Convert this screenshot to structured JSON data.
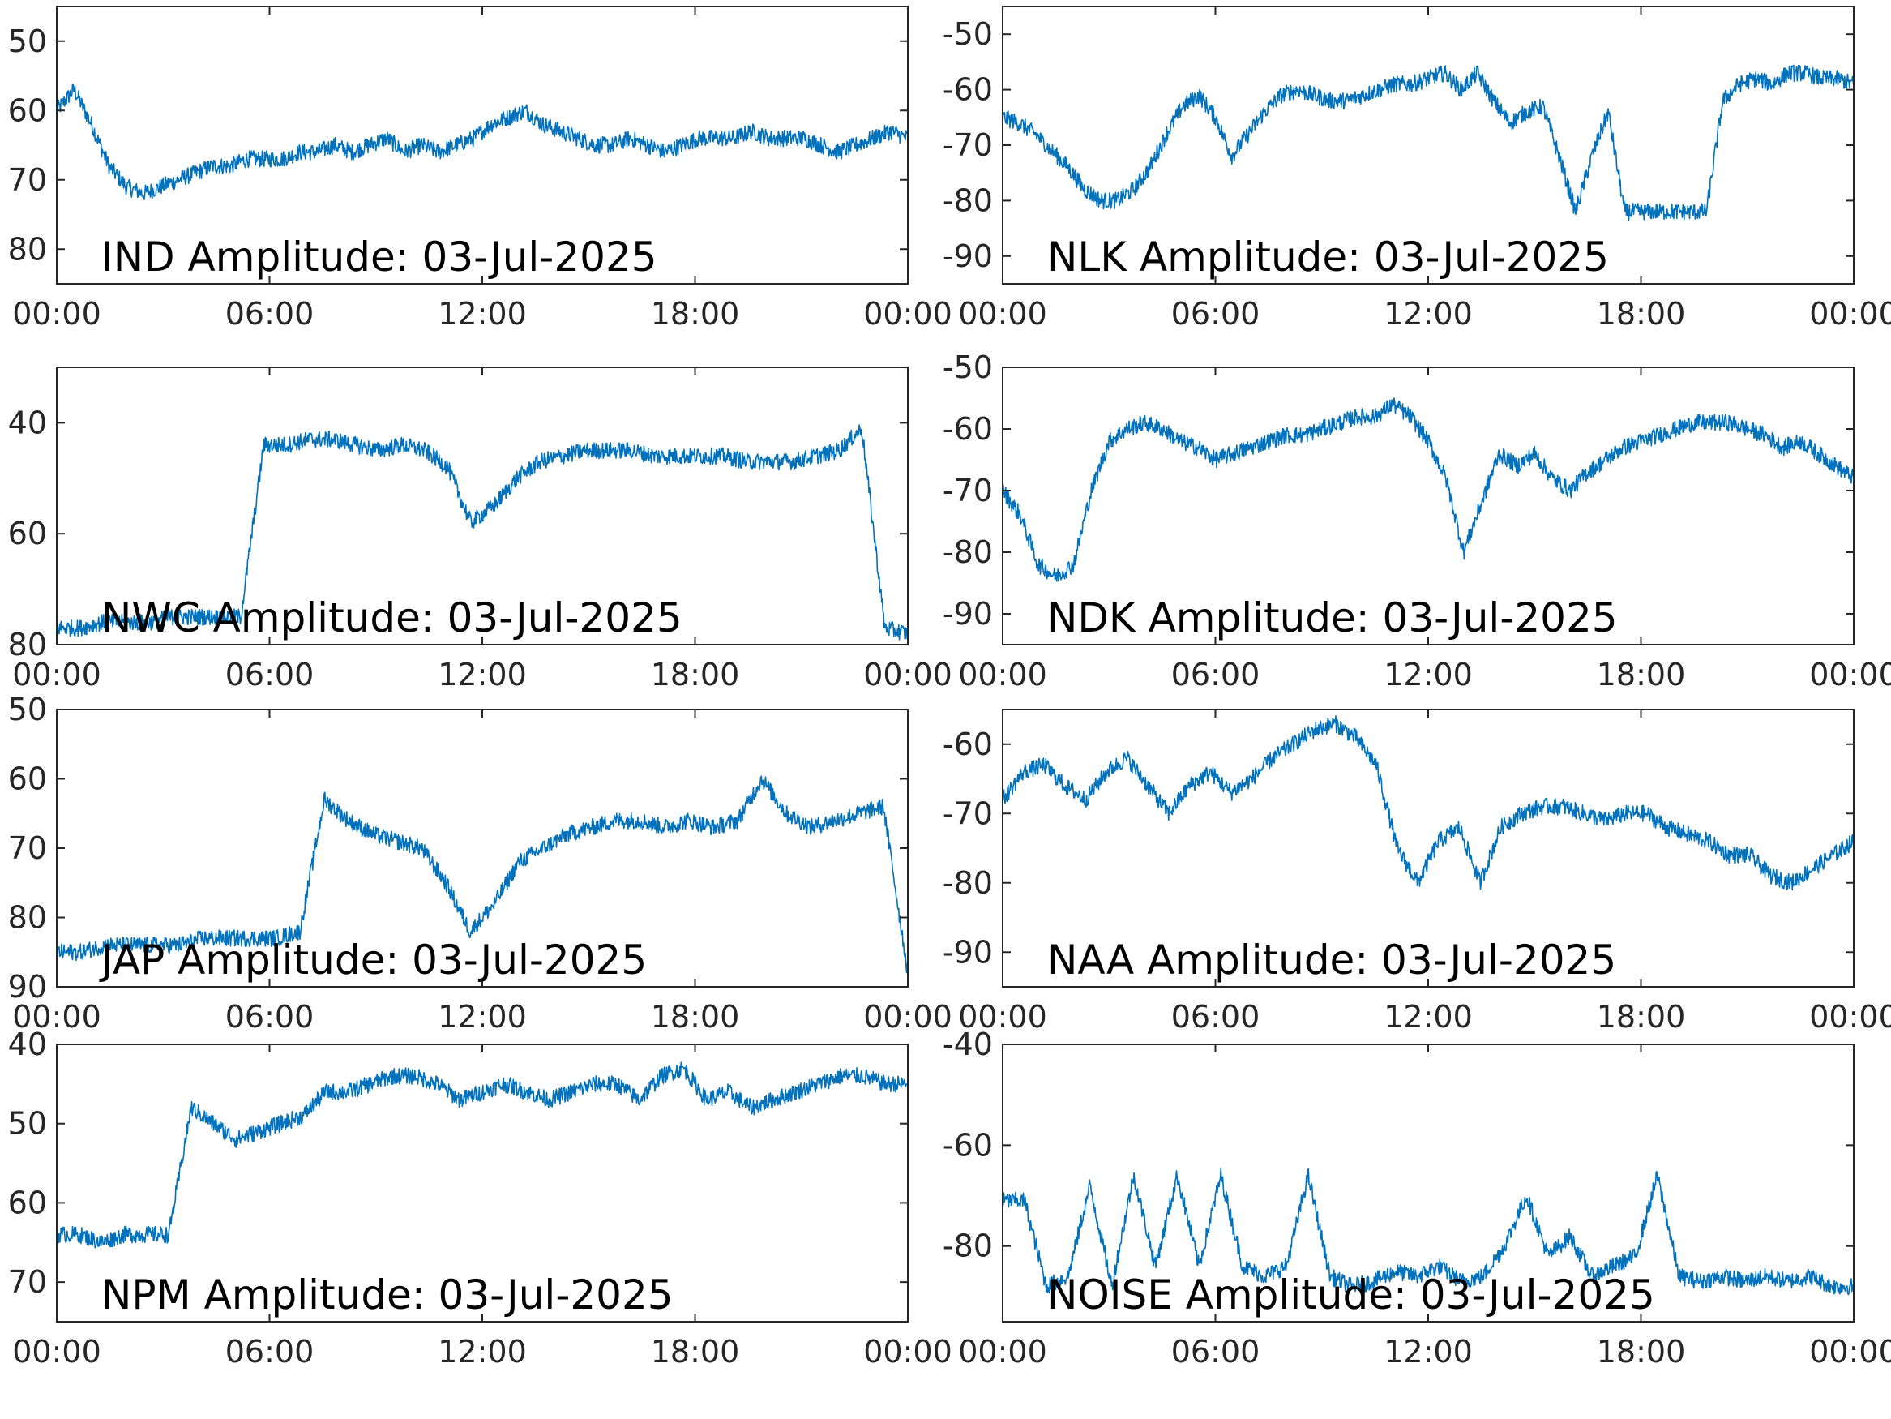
{
  "figure": {
    "series_color": "#0072BD"
  },
  "chart_data": [
    {
      "type": "line",
      "title": "IND Amplitude: 03-Jul-2025",
      "xlabel": "",
      "ylabel": "",
      "x_ticks": [
        "00:00",
        "06:00",
        "12:00",
        "18:00",
        "00:00"
      ],
      "xlim_hours": [
        0,
        24
      ],
      "ylim": [
        -85,
        -45
      ],
      "y_ticks": [
        -50,
        -60,
        -70,
        -80
      ],
      "y_tick_labels": [
        "50",
        "60",
        "70",
        "80"
      ],
      "series": [
        {
          "values": [
            -60,
            -57,
            -62,
            -68,
            -71,
            -72,
            -71,
            -70,
            -69,
            -68,
            -68,
            -67,
            -67,
            -67,
            -66,
            -66,
            -65,
            -66,
            -65,
            -64,
            -66,
            -65,
            -66,
            -65,
            -64,
            -62,
            -61,
            -60,
            -62,
            -63,
            -64,
            -65,
            -65,
            -64,
            -65,
            -66,
            -65,
            -64,
            -64,
            -64,
            -63,
            -64,
            -64,
            -64,
            -65,
            -66,
            -65,
            -64,
            -63,
            -64
          ]
        }
      ]
    },
    {
      "type": "line",
      "title": "NLK Amplitude: 03-Jul-2025",
      "xlabel": "",
      "ylabel": "",
      "x_ticks": [
        "00:00",
        "06:00",
        "12:00",
        "18:00",
        "00:00"
      ],
      "xlim_hours": [
        0,
        24
      ],
      "ylim": [
        -95,
        -45
      ],
      "y_ticks": [
        -50,
        -60,
        -70,
        -80,
        -90
      ],
      "y_tick_labels": [
        "-50",
        "-60",
        "-70",
        "-80",
        "-90"
      ],
      "series": [
        {
          "values": [
            -65,
            -66,
            -68,
            -71,
            -74,
            -78,
            -80,
            -80,
            -78,
            -74,
            -68,
            -63,
            -61,
            -65,
            -72,
            -68,
            -64,
            -61,
            -60,
            -61,
            -62,
            -62,
            -61,
            -60,
            -59,
            -59,
            -58,
            -57,
            -60,
            -57,
            -62,
            -66,
            -64,
            -63,
            -72,
            -82,
            -72,
            -64,
            -82,
            -82,
            -82,
            -82,
            -82,
            -82,
            -62,
            -59,
            -58,
            -59,
            -57,
            -57,
            -58,
            -58,
            -59
          ]
        }
      ]
    },
    {
      "type": "line",
      "title": "NWC Amplitude: 03-Jul-2025",
      "xlabel": "",
      "ylabel": "",
      "x_ticks": [
        "00:00",
        "06:00",
        "12:00",
        "18:00",
        "00:00"
      ],
      "xlim_hours": [
        0,
        24
      ],
      "ylim": [
        -80,
        -30
      ],
      "y_ticks": [
        -40,
        -60,
        -80
      ],
      "y_tick_labels": [
        "40",
        "60",
        "80"
      ],
      "series": [
        {
          "values": [
            -77,
            -77,
            -76,
            -76,
            -76,
            -75,
            -75,
            -75,
            -75,
            -44,
            -44,
            -43,
            -43,
            -44,
            -45,
            -44,
            -45,
            -48,
            -58,
            -55,
            -50,
            -47,
            -46,
            -45,
            -45,
            -45,
            -46,
            -46,
            -46,
            -46,
            -47,
            -47,
            -47,
            -46,
            -45,
            -41,
            -77,
            -78
          ]
        }
      ]
    },
    {
      "type": "line",
      "title": "NDK Amplitude: 03-Jul-2025",
      "xlabel": "",
      "ylabel": "",
      "x_ticks": [
        "00:00",
        "06:00",
        "12:00",
        "18:00",
        "00:00"
      ],
      "xlim_hours": [
        0,
        24
      ],
      "ylim": [
        -95,
        -50
      ],
      "y_ticks": [
        -50,
        -60,
        -70,
        -80,
        -90
      ],
      "y_tick_labels": [
        "-50",
        "-60",
        "-70",
        "-80",
        "-90"
      ],
      "series": [
        {
          "values": [
            -70,
            -74,
            -82,
            -84,
            -82,
            -70,
            -62,
            -60,
            -59,
            -60,
            -62,
            -63,
            -65,
            -64,
            -63,
            -62,
            -61,
            -61,
            -60,
            -59,
            -58,
            -58,
            -56,
            -58,
            -62,
            -68,
            -80,
            -72,
            -64,
            -66,
            -64,
            -68,
            -70,
            -67,
            -65,
            -63,
            -62,
            -61,
            -60,
            -59,
            -59,
            -59,
            -60,
            -61,
            -63,
            -62,
            -64,
            -66,
            -68
          ]
        }
      ]
    },
    {
      "type": "line",
      "title": "JAP Amplitude: 03-Jul-2025",
      "xlabel": "",
      "ylabel": "",
      "x_ticks": [
        "00:00",
        "06:00",
        "12:00",
        "18:00",
        "00:00"
      ],
      "xlim_hours": [
        0,
        24
      ],
      "ylim": [
        -90,
        -50
      ],
      "y_ticks": [
        -50,
        -60,
        -70,
        -80,
        -90
      ],
      "y_tick_labels": [
        "50",
        "60",
        "70",
        "80",
        "90"
      ],
      "series": [
        {
          "values": [
            -85,
            -85,
            -84,
            -84,
            -84,
            -84,
            -83,
            -83,
            -83,
            -83,
            -82,
            -63,
            -66,
            -68,
            -69,
            -70,
            -75,
            -82,
            -78,
            -72,
            -70,
            -68,
            -67,
            -66,
            -66,
            -67,
            -66,
            -67,
            -66,
            -60,
            -65,
            -67,
            -66,
            -65,
            -64,
            -88
          ]
        }
      ]
    },
    {
      "type": "line",
      "title": "NAA Amplitude: 03-Jul-2025",
      "xlabel": "",
      "ylabel": "",
      "x_ticks": [
        "00:00",
        "06:00",
        "12:00",
        "18:00",
        "00:00"
      ],
      "xlim_hours": [
        0,
        24
      ],
      "ylim": [
        -95,
        -55
      ],
      "y_ticks": [
        -60,
        -70,
        -80,
        -90
      ],
      "y_tick_labels": [
        "-60",
        "-70",
        "-80",
        "-90"
      ],
      "series": [
        {
          "values": [
            -68,
            -64,
            -63,
            -66,
            -68,
            -64,
            -62,
            -66,
            -70,
            -66,
            -64,
            -67,
            -65,
            -62,
            -60,
            -58,
            -57,
            -59,
            -63,
            -75,
            -80,
            -74,
            -72,
            -80,
            -72,
            -70,
            -69,
            -69,
            -70,
            -71,
            -70,
            -70,
            -72,
            -73,
            -74,
            -76,
            -76,
            -79,
            -80,
            -78,
            -76,
            -74
          ]
        }
      ]
    },
    {
      "type": "line",
      "title": "NPM Amplitude: 03-Jul-2025",
      "xlabel": "",
      "ylabel": "",
      "x_ticks": [
        "00:00",
        "06:00",
        "12:00",
        "18:00",
        "00:00"
      ],
      "xlim_hours": [
        0,
        24
      ],
      "ylim": [
        -75,
        -40
      ],
      "y_ticks": [
        -40,
        -50,
        -60,
        -70
      ],
      "y_tick_labels": [
        "40",
        "50",
        "60",
        "70"
      ],
      "series": [
        {
          "values": [
            -64,
            -64,
            -65,
            -64,
            -64,
            -64,
            -48,
            -50,
            -52,
            -51,
            -50,
            -49,
            -46,
            -46,
            -45,
            -44,
            -44,
            -45,
            -47,
            -46,
            -45,
            -46,
            -47,
            -46,
            -45,
            -45,
            -47,
            -44,
            -43,
            -47,
            -46,
            -48,
            -47,
            -46,
            -45,
            -44,
            -44,
            -45,
            -45
          ]
        }
      ]
    },
    {
      "type": "line",
      "title": "NOISE Amplitude: 03-Jul-2025",
      "xlabel": "",
      "ylabel": "",
      "x_ticks": [
        "00:00",
        "06:00",
        "12:00",
        "18:00",
        "00:00"
      ],
      "xlim_hours": [
        0,
        24
      ],
      "ylim": [
        -95,
        -40
      ],
      "y_ticks": [
        -40,
        -60,
        -80
      ],
      "y_tick_labels": [
        "-40",
        "-60",
        "-80"
      ],
      "series": [
        {
          "values": [
            -71,
            -71,
            -88,
            -86,
            -68,
            -88,
            -66,
            -84,
            -66,
            -84,
            -66,
            -84,
            -86,
            -84,
            -66,
            -86,
            -88,
            -87,
            -85,
            -86,
            -84,
            -87,
            -86,
            -80,
            -70,
            -82,
            -78,
            -86,
            -84,
            -82,
            -66,
            -86,
            -87,
            -86,
            -87,
            -86,
            -87,
            -86,
            -88,
            -88
          ]
        }
      ]
    }
  ]
}
